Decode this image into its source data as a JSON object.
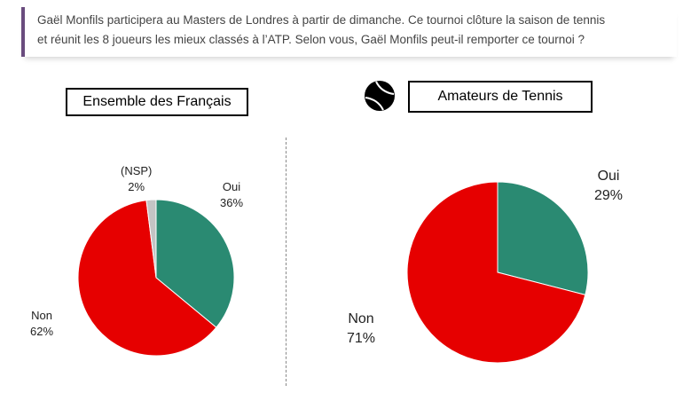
{
  "question": {
    "line1": "Gaël Monfils participera au Masters de Londres à partir de dimanche. Ce tournoi clôture la saison de tennis",
    "line2": "et réunit les 8 joueurs les mieux classés à l’ATP. Selon vous, Gaël Monfils peut-il remporter ce tournoi ?"
  },
  "colors": {
    "oui": "#2a8a72",
    "non": "#e60000",
    "nsp": "#c4c4c4",
    "accent": "#6a4c7e"
  },
  "chart_data": [
    {
      "type": "pie",
      "title": "Ensemble des Français",
      "slices": [
        {
          "label": "Oui",
          "value": 36,
          "text": "36%"
        },
        {
          "label": "Non",
          "value": 62,
          "text": "62%"
        },
        {
          "label": "(NSP)",
          "value": 2,
          "text": "2%"
        }
      ]
    },
    {
      "type": "pie",
      "title": "Amateurs de Tennis",
      "slices": [
        {
          "label": "Oui",
          "value": 29,
          "text": "29%"
        },
        {
          "label": "Non",
          "value": 71,
          "text": "71%"
        }
      ]
    }
  ]
}
